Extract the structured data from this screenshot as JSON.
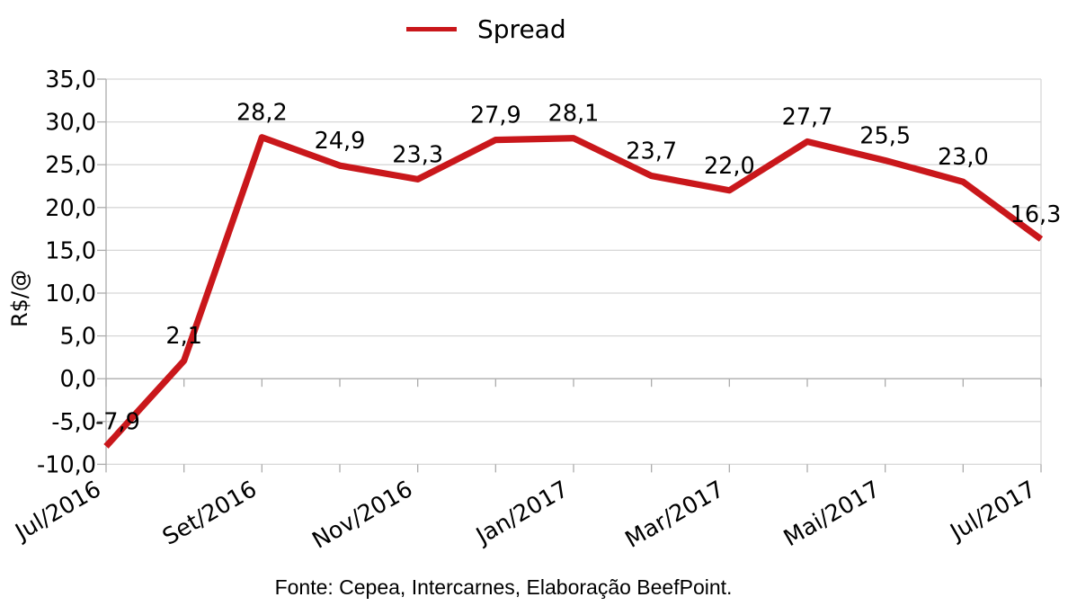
{
  "chart_data": {
    "type": "line",
    "legend": [
      "Spread"
    ],
    "legend_position": "top-center",
    "ylabel": "R$/@",
    "ylim": [
      -10,
      35
    ],
    "y_tick_step": 5,
    "grid": "horizontal",
    "x_axis_position": "crosses-at-zero-labels-low",
    "y_tick_labels": [
      "35,0",
      "30,0",
      "25,0",
      "20,0",
      "15,0",
      "10,0",
      "5,0",
      "0,0",
      "-5,0",
      "-10,0"
    ],
    "x_tick_labels": [
      "Jul/2016",
      "",
      "Set/2016",
      "",
      "Nov/2016",
      "",
      "Jan/2017",
      "",
      "Mar/2017",
      "",
      "Mai/2017",
      "",
      "Jul/2017"
    ],
    "series": [
      {
        "name": "Spread",
        "color": "#C9171B",
        "values": [
          -7.9,
          2.1,
          28.2,
          24.9,
          23.3,
          27.9,
          28.1,
          23.7,
          22.0,
          27.7,
          25.5,
          23.0,
          16.3
        ],
        "display_labels": [
          "-7,9",
          "2,1",
          "28,2",
          "24,9",
          "23,3",
          "27,9",
          "28,1",
          "23,7",
          "22,0",
          "27,7",
          "25,5",
          "23,0",
          "16,3"
        ]
      }
    ],
    "colors": {
      "series_red": "#C9171B",
      "gridline": "#D7D7D7",
      "axis": "#ACACAC",
      "text": "#000000"
    }
  },
  "footer": {
    "text": "Fonte: Cepea, Intercarnes, Elaboração BeefPoint."
  }
}
